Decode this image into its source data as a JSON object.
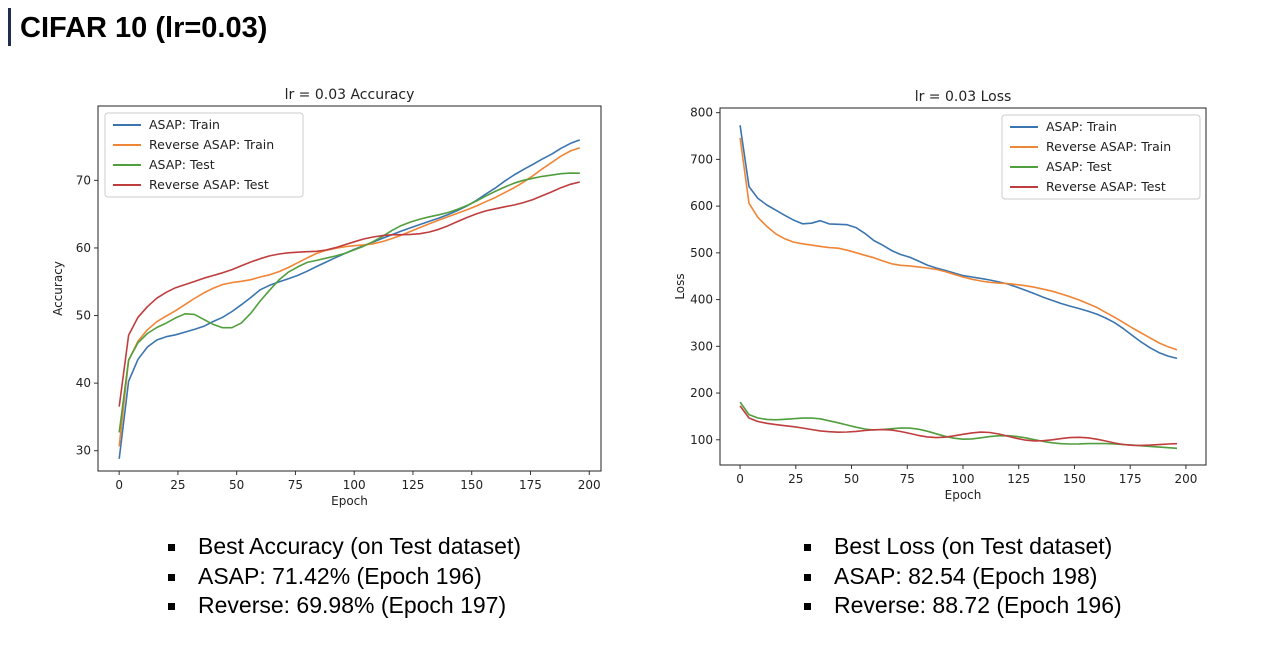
{
  "slide": {
    "title": "CIFAR 10 (lr=0.03)"
  },
  "notes_accuracy": [
    "Best Accuracy (on Test dataset)",
    "ASAP: 71.42% (Epoch 196)",
    "Reverse: 69.98% (Epoch 197)"
  ],
  "notes_loss": [
    "Best Loss (on Test dataset)",
    "ASAP: 82.54 (Epoch 198)",
    "Reverse: 88.72 (Epoch 196)"
  ],
  "chart_data": [
    {
      "type": "line",
      "title": "lr = 0.03 Accuracy",
      "xlabel": "Epoch",
      "ylabel": "Accuracy",
      "xlim": [
        -9,
        205
      ],
      "ylim": [
        27,
        81
      ],
      "xticks": [
        0,
        25,
        50,
        75,
        100,
        125,
        150,
        175,
        200
      ],
      "yticks": [
        30,
        40,
        50,
        60,
        70
      ],
      "legend": "top-left",
      "grid": false,
      "x": [
        0,
        1,
        2,
        3,
        5,
        7,
        10,
        15,
        20,
        25,
        30,
        35,
        40,
        45,
        50,
        55,
        60,
        65,
        70,
        75,
        80,
        85,
        90,
        95,
        100,
        110,
        120,
        130,
        140,
        150,
        160,
        170,
        180,
        190,
        199
      ],
      "series": [
        {
          "name": "ASAP: Train",
          "color": "#3b75af",
          "values": [
            28.8,
            34,
            37,
            39,
            41,
            42.5,
            44.2,
            45.8,
            46.7,
            47.4,
            48.2,
            48.7,
            49.4,
            49.9,
            50.8,
            52,
            53.5,
            54.5,
            55.3,
            56,
            56.8,
            57.6,
            58.3,
            59,
            59.7,
            61,
            62.4,
            63.8,
            65.2,
            66.6,
            68.5,
            71,
            73.5,
            75.6,
            76.2
          ]
        },
        {
          "name": "Reverse ASAP: Train",
          "color": "#ef8536",
          "values": [
            30.2,
            37,
            40,
            42,
            44,
            45.5,
            47.2,
            49.2,
            50.4,
            51.4,
            52.3,
            53,
            53.6,
            54.2,
            54.6,
            55.2,
            56,
            56.6,
            57.2,
            57.8,
            58.4,
            59,
            59.4,
            59.9,
            60.3,
            61,
            62,
            63.2,
            64.5,
            65.8,
            67.5,
            69.5,
            71.8,
            73.8,
            74.8
          ]
        },
        {
          "name": "ASAP: Test",
          "color": "#519e3e",
          "values": [
            32.8,
            38.5,
            40.5,
            42.8,
            44.5,
            45.8,
            47.2,
            48.3,
            48.9,
            49.6,
            50.1,
            49.2,
            48.5,
            48.2,
            48.7,
            50.4,
            52.5,
            54.2,
            55.7,
            56.5,
            57.4,
            58,
            58.8,
            59.5,
            60.2,
            61.3,
            62.9,
            64.3,
            65.5,
            66.8,
            68.3,
            69.7,
            70.5,
            71.1,
            71.2
          ]
        },
        {
          "name": "Reverse ASAP: Test",
          "color": "#c03d3e",
          "values": [
            36.5,
            41.5,
            44,
            46,
            48,
            49.2,
            50.5,
            52.2,
            53.3,
            54.2,
            54.8,
            55.6,
            56.2,
            56.7,
            57.2,
            57.7,
            58.1,
            58.5,
            58.9,
            59.3,
            59.7,
            60,
            60.3,
            60.6,
            60.8,
            61.2,
            61.9,
            62.7,
            63.5,
            64.4,
            65.5,
            66.7,
            68,
            69.2,
            69.8
          ]
        }
      ]
    },
    {
      "type": "line",
      "title": "lr = 0.03 Loss",
      "xlabel": "Epoch",
      "ylabel": "Loss",
      "xlim": [
        -9,
        209
      ],
      "ylim": [
        46,
        810
      ],
      "xticks": [
        0,
        25,
        50,
        75,
        100,
        125,
        150,
        175,
        200
      ],
      "yticks": [
        100,
        200,
        300,
        400,
        500,
        600,
        700,
        800
      ],
      "legend": "top-right",
      "grid": false,
      "x": [
        0,
        1,
        2,
        3,
        5,
        7,
        10,
        15,
        20,
        25,
        30,
        35,
        40,
        45,
        50,
        55,
        60,
        65,
        70,
        75,
        80,
        85,
        90,
        95,
        100,
        110,
        120,
        130,
        140,
        150,
        160,
        170,
        180,
        190,
        199
      ],
      "series": [
        {
          "name": "ASAP: Train",
          "color": "#3b75af",
          "values": [
            773,
            690,
            665,
            648,
            628,
            615,
            600,
            588,
            578,
            570,
            565,
            577,
            566,
            561,
            556,
            540,
            522,
            512,
            500,
            496,
            486,
            474,
            466,
            458,
            450,
            442,
            432,
            418,
            402,
            384,
            364,
            342,
            314,
            287,
            268
          ]
        },
        {
          "name": "Reverse ASAP: Train",
          "color": "#ef8536",
          "values": [
            740,
            660,
            630,
            612,
            590,
            578,
            565,
            548,
            537,
            528,
            521,
            512,
            505,
            502,
            498,
            496,
            494,
            488,
            480,
            475,
            468,
            462,
            457,
            452,
            448,
            442,
            436,
            427,
            416,
            402,
            384,
            360,
            330,
            298,
            282
          ]
        },
        {
          "name": "ASAP: Test",
          "color": "#519e3e",
          "values": [
            182,
            168,
            163,
            159,
            155,
            152,
            149,
            146,
            144,
            142,
            141,
            140,
            138,
            137,
            135,
            131,
            126,
            123,
            120,
            118,
            116,
            114,
            112,
            110,
            108,
            106,
            103,
            100,
            97,
            94,
            91,
            88,
            86,
            84,
            83
          ]
        },
        {
          "name": "Reverse ASAP: Test",
          "color": "#c03d3e",
          "values": [
            172,
            158,
            152,
            148,
            143,
            139,
            135,
            131,
            128,
            126,
            124,
            122,
            121,
            120,
            119,
            118,
            117,
            116,
            115,
            114,
            113,
            112,
            111,
            111,
            110,
            109,
            107,
            105,
            103,
            100,
            97,
            94,
            92,
            90,
            89
          ]
        }
      ]
    }
  ]
}
